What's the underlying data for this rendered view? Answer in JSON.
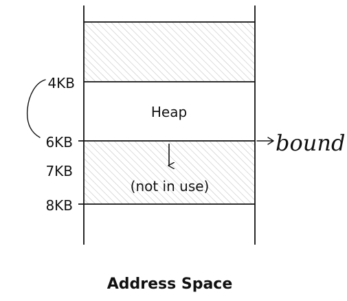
{
  "diagram": {
    "title": "Address Space",
    "addresses": {
      "a4": "4KB",
      "a6": "6KB",
      "a7": "7KB",
      "a8": "8KB"
    },
    "regions": {
      "heap": "Heap",
      "unused": "(not in use)"
    },
    "annotation": "bound",
    "colors": {
      "line": "#111111",
      "hatch": "#c8c8c8",
      "background": "#ffffff"
    }
  }
}
